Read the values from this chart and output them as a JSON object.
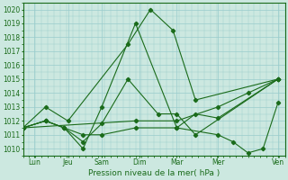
{
  "title": "Pression niveau de la mer( hPa )",
  "ylabel_vals": [
    1010,
    1011,
    1012,
    1013,
    1014,
    1015,
    1016,
    1017,
    1018,
    1019,
    1020
  ],
  "ylim": [
    1009.5,
    1020.5
  ],
  "xlim": [
    0,
    7
  ],
  "xtick_labels": [
    "Lun",
    "Jeu",
    "Sam",
    "Dim",
    "Mar",
    "Mer",
    "Ven"
  ],
  "xtick_pos": [
    0.3,
    1.2,
    2.1,
    3.1,
    4.1,
    5.2,
    6.8
  ],
  "background_color": "#cce8e0",
  "grid_color": "#99cccc",
  "line_color": "#1a6b1a",
  "lines": [
    {
      "x": [
        0.0,
        0.6,
        1.2,
        2.8,
        3.4,
        4.0,
        4.6,
        6.8
      ],
      "y": [
        1011.5,
        1013.0,
        1012.0,
        1017.5,
        1020.0,
        1018.5,
        1013.5,
        1015.0
      ]
    },
    {
      "x": [
        0.0,
        0.6,
        1.1,
        1.6,
        2.1,
        2.8,
        3.6,
        4.1,
        4.6,
        6.8
      ],
      "y": [
        1011.5,
        1012.0,
        1011.5,
        1010.5,
        1011.8,
        1015.0,
        1012.5,
        1012.5,
        1011.0,
        1015.0
      ]
    },
    {
      "x": [
        0.0,
        0.6,
        1.1,
        1.6,
        2.1,
        3.0,
        4.1,
        4.6,
        5.2,
        6.8
      ],
      "y": [
        1011.5,
        1012.0,
        1011.5,
        1010.0,
        1013.0,
        1019.0,
        1011.5,
        1012.5,
        1012.2,
        1015.0
      ]
    },
    {
      "x": [
        0.0,
        0.6,
        1.1,
        1.6,
        2.1,
        3.0,
        4.1,
        5.2,
        5.6,
        6.0,
        6.4,
        6.8
      ],
      "y": [
        1011.5,
        1012.0,
        1011.5,
        1011.0,
        1011.0,
        1011.5,
        1011.5,
        1011.0,
        1010.5,
        1009.7,
        1010.0,
        1013.3
      ]
    },
    {
      "x": [
        0.0,
        3.0,
        4.1,
        5.2,
        6.0,
        6.8
      ],
      "y": [
        1011.5,
        1012.0,
        1012.0,
        1013.0,
        1014.0,
        1015.0
      ]
    }
  ]
}
